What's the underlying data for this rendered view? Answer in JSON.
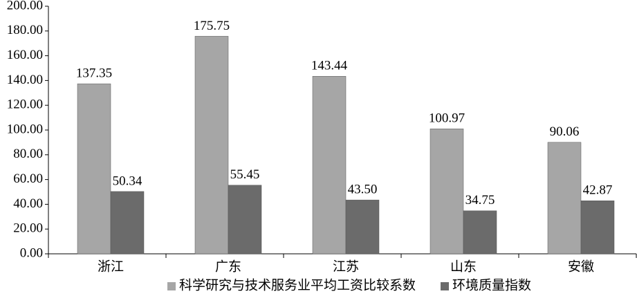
{
  "chart_data": {
    "type": "bar",
    "categories": [
      "浙江",
      "广东",
      "江苏",
      "山东",
      "安徽"
    ],
    "series": [
      {
        "name": "科学研究与技术服务业平均工资比较系数",
        "color": "#a6a6a6",
        "values": [
          137.35,
          175.75,
          143.44,
          100.97,
          90.06
        ]
      },
      {
        "name": "环境质量指数",
        "color": "#6b6b6b",
        "values": [
          50.34,
          55.45,
          43.5,
          34.75,
          42.87
        ],
        "value_labels": [
          "50.34",
          "55.45",
          "43.50",
          "34.75",
          "42.87"
        ]
      }
    ],
    "ylim": [
      0,
      200
    ],
    "yticks": [
      {
        "value": 0,
        "label": "0.00"
      },
      {
        "value": 20,
        "label": "20.00"
      },
      {
        "value": 40,
        "label": "40.00"
      },
      {
        "value": 60,
        "label": "60.00"
      },
      {
        "value": 80,
        "label": "80.00"
      },
      {
        "value": 100,
        "label": "100.00"
      },
      {
        "value": 120,
        "label": "120.00"
      },
      {
        "value": 140,
        "label": "140.00"
      },
      {
        "value": 160,
        "label": "160.00"
      },
      {
        "value": 180,
        "label": "180.00"
      },
      {
        "value": 200,
        "label": "200.00"
      }
    ],
    "grid": false,
    "legend": "bottom"
  }
}
